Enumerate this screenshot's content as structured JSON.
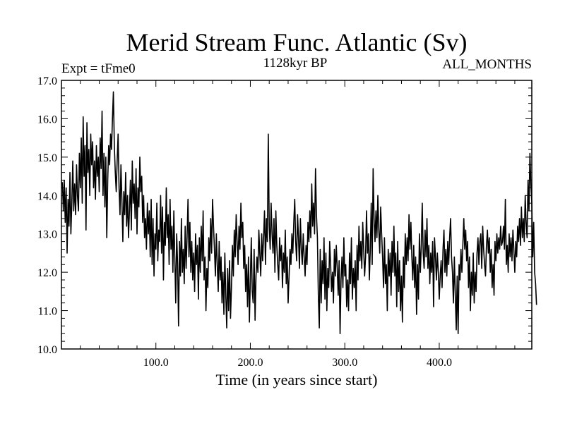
{
  "chart_data": {
    "type": "line",
    "title": "Merid Stream Func. Atlantic (Sv)",
    "subtitle": "1128kyr BP",
    "left_label": "Expt = tFme0",
    "right_label": "ALL_MONTHS",
    "xlabel": "Time (in years since start)",
    "ylabel": "",
    "xlim": [
      0,
      498
    ],
    "ylim": [
      10.0,
      17.0
    ],
    "xticks": [
      100,
      200,
      300,
      400
    ],
    "xtick_labels": [
      "100.0",
      "200.0",
      "300.0",
      "400.0"
    ],
    "yticks": [
      10,
      11,
      12,
      13,
      14,
      15,
      16,
      17
    ],
    "ytick_labels": [
      "10.0",
      "11.0",
      "12.0",
      "13.0",
      "14.0",
      "15.0",
      "16.0",
      "17.0"
    ],
    "grid": false,
    "line_color": "#000000",
    "series": [
      {
        "name": "Merid Stream Func. Atlantic",
        "x_start": 1,
        "x_step": 1,
        "values": [
          14.35,
          13.6,
          14.4,
          13.3,
          14.2,
          12.5,
          13.9,
          13.2,
          14.6,
          13.0,
          13.8,
          14.9,
          13.6,
          14.3,
          13.5,
          14.8,
          14.0,
          13.6,
          15.1,
          14.2,
          15.5,
          13.8,
          16.05,
          14.5,
          15.3,
          13.1,
          15.9,
          14.6,
          15.2,
          14.0,
          15.6,
          14.8,
          15.4,
          14.2,
          14.9,
          13.9,
          15.3,
          14.5,
          15.0,
          14.1,
          15.5,
          14.7,
          16.2,
          14.0,
          15.1,
          13.7,
          15.0,
          12.9,
          14.4,
          15.3,
          14.8,
          15.6,
          15.2,
          16.0,
          16.7,
          15.3,
          14.6,
          14.1,
          14.9,
          15.6,
          14.2,
          13.5,
          14.8,
          13.9,
          12.8,
          14.1,
          13.5,
          14.6,
          13.2,
          14.0,
          12.9,
          13.6,
          14.4,
          13.1,
          14.9,
          13.8,
          14.3,
          13.4,
          14.7,
          13.0,
          14.2,
          13.7,
          15.0,
          14.1,
          14.5,
          13.3,
          14.0,
          12.9,
          13.4,
          12.6,
          13.8,
          13.0,
          13.6,
          12.4,
          13.9,
          12.2,
          13.4,
          11.9,
          13.0,
          12.6,
          13.8,
          12.3,
          13.1,
          12.8,
          14.0,
          12.5,
          13.7,
          11.8,
          13.3,
          12.7,
          14.2,
          12.9,
          13.5,
          12.2,
          13.9,
          12.6,
          13.2,
          12.0,
          13.6,
          12.4,
          11.2,
          13.0,
          12.2,
          10.6,
          12.8,
          11.9,
          13.4,
          12.0,
          12.6,
          11.7,
          13.2,
          12.1,
          12.9,
          13.9,
          12.4,
          13.3,
          12.0,
          12.8,
          11.8,
          12.5,
          11.5,
          13.0,
          12.2,
          12.7,
          11.3,
          12.9,
          12.0,
          13.2,
          12.3,
          13.6,
          11.8,
          12.4,
          11.0,
          12.1,
          11.6,
          12.9,
          12.3,
          13.4,
          12.5,
          13.9,
          13.2,
          12.6,
          11.9,
          13.0,
          12.2,
          11.5,
          12.8,
          11.8,
          12.4,
          11.2,
          12.0,
          10.9,
          12.5,
          11.4,
          10.55,
          12.1,
          11.0,
          12.3,
          10.8,
          11.6,
          12.7,
          11.9,
          13.1,
          12.4,
          13.5,
          12.8,
          12.2,
          13.2,
          12.6,
          13.8,
          12.9,
          13.3,
          12.1,
          12.7,
          11.5,
          12.2,
          11.1,
          12.4,
          10.7,
          11.8,
          12.9,
          11.5,
          11.2,
          12.6,
          10.75,
          11.9,
          12.4,
          12.0,
          13.1,
          12.5,
          11.9,
          13.0,
          12.3,
          12.9,
          13.6,
          12.2,
          13.4,
          12.8,
          15.6,
          13.2,
          12.6,
          13.8,
          13.0,
          12.5,
          13.4,
          12.0,
          13.6,
          12.7,
          12.2,
          11.8,
          12.9,
          12.3,
          12.7,
          11.6,
          12.5,
          12.0,
          13.1,
          11.7,
          12.4,
          11.2,
          11.9,
          12.6,
          12.2,
          13.0,
          12.5,
          13.3,
          13.9,
          12.8,
          12.3,
          13.5,
          12.9,
          12.1,
          13.4,
          12.6,
          12.2,
          13.0,
          12.4,
          11.9,
          12.7,
          12.2,
          13.3,
          12.8,
          13.6,
          12.9,
          14.3,
          13.2,
          13.8,
          13.0,
          14.7,
          13.5,
          12.9,
          11.4,
          10.55,
          12.6,
          11.2,
          12.3,
          11.7,
          12.9,
          11.3,
          12.5,
          11.0,
          12.1,
          11.6,
          12.8,
          12.2,
          11.5,
          12.0,
          11.2,
          12.6,
          11.9,
          12.7,
          12.1,
          11.4,
          12.3,
          10.4,
          11.8,
          12.4,
          11.6,
          12.9,
          11.9,
          12.2,
          11.1,
          11.8,
          11.0,
          12.5,
          11.7,
          12.9,
          11.3,
          12.1,
          11.6,
          12.3,
          11.0,
          12.7,
          11.8,
          13.2,
          12.3,
          12.8,
          12.1,
          13.3,
          12.6,
          11.9,
          12.4,
          13.6,
          12.5,
          13.0,
          11.8,
          12.6,
          13.8,
          12.2,
          14.7,
          13.4,
          12.8,
          13.6,
          12.9,
          14.0,
          13.1,
          12.5,
          13.7,
          13.0,
          12.4,
          11.6,
          12.9,
          11.7,
          12.2,
          11.0,
          12.6,
          11.9,
          12.5,
          11.4,
          12.8,
          12.0,
          13.2,
          11.9,
          12.5,
          11.1,
          12.8,
          11.5,
          12.3,
          11.0,
          11.9,
          10.7,
          12.4,
          11.6,
          13.0,
          12.2,
          12.9,
          12.3,
          13.5,
          12.6,
          13.3,
          12.4,
          11.8,
          12.7,
          11.6,
          12.4,
          10.9,
          12.2,
          11.3,
          13.0,
          12.0,
          12.7,
          13.8,
          12.5,
          12.1,
          13.1,
          12.4,
          13.4,
          12.1,
          12.7,
          11.7,
          12.5,
          12.0,
          12.8,
          11.1,
          12.9,
          12.4,
          11.8,
          12.5,
          12.0,
          11.3,
          11.9,
          12.3,
          11.6,
          12.6,
          13.1,
          12.0,
          12.6,
          11.9,
          12.8,
          12.2,
          12.9,
          13.4,
          12.4,
          12.0,
          11.2,
          12.4,
          11.4,
          10.5,
          11.9,
          10.4,
          12.2,
          11.8,
          12.6,
          12.0,
          12.7,
          13.4,
          12.6,
          13.1,
          12.3,
          12.8,
          11.6,
          12.4,
          11.0,
          12.0,
          11.4,
          12.5,
          11.2,
          12.0,
          11.5,
          12.5,
          12.9,
          12.2,
          12.8,
          13.0,
          12.1,
          13.2,
          12.6,
          12.2,
          11.9,
          12.7,
          13.1,
          12.5,
          12.9,
          12.0,
          12.6,
          11.6,
          12.2,
          11.4,
          12.8,
          12.3,
          13.0,
          12.5,
          12.9,
          12.6,
          13.2,
          12.7,
          12.8,
          13.2,
          12.6,
          13.9,
          12.2,
          12.7,
          12.0,
          13.0,
          12.4,
          12.9,
          12.3,
          13.1,
          12.6,
          12.0,
          12.8,
          12.4,
          13.2,
          12.8,
          13.4,
          12.7,
          13.7,
          12.9,
          13.4,
          12.8,
          14.0,
          13.3,
          12.9,
          14.4,
          13.6,
          15.1,
          14.3,
          13.8,
          12.4,
          13.3,
          12.0,
          11.7,
          11.15
        ]
      }
    ]
  }
}
